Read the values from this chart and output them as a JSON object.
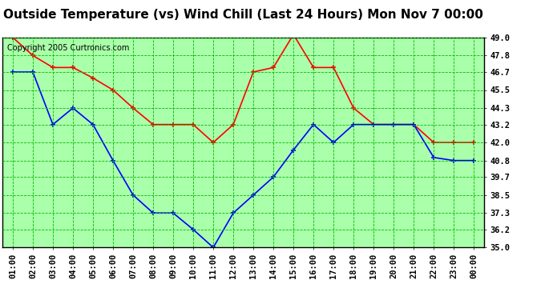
{
  "title": "Outside Temperature (vs) Wind Chill (Last 24 Hours) Mon Nov 7 00:00",
  "copyright": "Copyright 2005 Curtronics.com",
  "x_labels": [
    "01:00",
    "02:00",
    "03:00",
    "04:00",
    "05:00",
    "06:00",
    "07:00",
    "08:00",
    "09:00",
    "10:00",
    "11:00",
    "12:00",
    "13:00",
    "14:00",
    "15:00",
    "16:00",
    "17:00",
    "18:00",
    "19:00",
    "20:00",
    "21:00",
    "22:00",
    "23:00",
    "00:00"
  ],
  "red_data": [
    49.0,
    47.8,
    47.0,
    47.0,
    46.3,
    45.5,
    44.3,
    43.2,
    43.2,
    43.2,
    42.0,
    43.2,
    46.7,
    47.0,
    49.2,
    47.0,
    47.0,
    44.3,
    43.2,
    43.2,
    43.2,
    42.0,
    42.0,
    42.0
  ],
  "blue_data": [
    46.7,
    46.7,
    43.2,
    44.3,
    43.2,
    40.8,
    38.5,
    37.3,
    37.3,
    36.2,
    35.0,
    37.3,
    38.5,
    39.7,
    41.5,
    43.2,
    42.0,
    43.2,
    43.2,
    43.2,
    43.2,
    41.0,
    40.8,
    40.8
  ],
  "ylim": [
    35.0,
    49.0
  ],
  "yticks": [
    35.0,
    36.2,
    37.3,
    38.5,
    39.7,
    40.8,
    42.0,
    43.2,
    44.3,
    45.5,
    46.7,
    47.8,
    49.0
  ],
  "red_color": "#ff0000",
  "blue_color": "#0000ff",
  "grid_color": "#00bb00",
  "bg_color": "#ffffff",
  "plot_bg_color": "#aaffaa",
  "title_fontsize": 11,
  "copyright_fontsize": 7,
  "tick_fontsize": 7.5
}
